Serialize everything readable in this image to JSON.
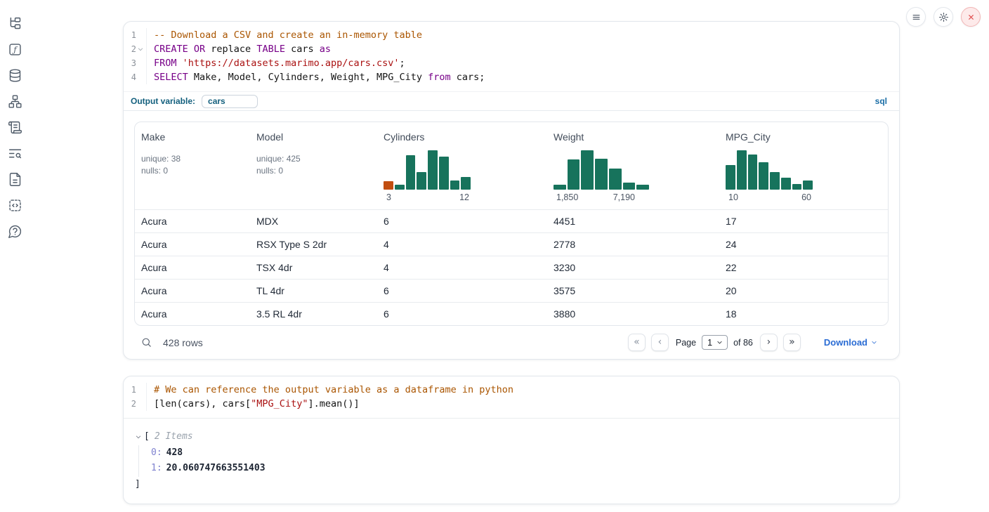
{
  "sidebar": {
    "icons": [
      "file-tree",
      "function-square",
      "database",
      "network-graph",
      "scroll-text",
      "text-search",
      "file-text",
      "code-snippets",
      "help-circle"
    ]
  },
  "top_controls": {
    "buttons": [
      "menu",
      "settings",
      "shutdown"
    ]
  },
  "sql_cell": {
    "language_badge": "sql",
    "output_variable_label": "Output variable:",
    "output_variable_value": "cars",
    "lines": [
      {
        "num": "1",
        "tokens": [
          {
            "t": "-- Download a CSV and create an in-memory table",
            "c": "comment"
          }
        ]
      },
      {
        "num": "2",
        "fold": true,
        "tokens": [
          {
            "t": "CREATE OR",
            "c": "keyword"
          },
          {
            "t": " replace ",
            "c": "plain"
          },
          {
            "t": "TABLE",
            "c": "keyword"
          },
          {
            "t": " cars ",
            "c": "plain"
          },
          {
            "t": "as",
            "c": "keyword"
          }
        ]
      },
      {
        "num": "3",
        "tokens": [
          {
            "t": "FROM",
            "c": "keyword"
          },
          {
            "t": " ",
            "c": "plain"
          },
          {
            "t": "'https://datasets.marimo.app/cars.csv'",
            "c": "string"
          },
          {
            "t": ";",
            "c": "plain"
          }
        ]
      },
      {
        "num": "4",
        "tokens": [
          {
            "t": "SELECT",
            "c": "keyword"
          },
          {
            "t": " Make, Model, Cylinders, Weight, MPG_City ",
            "c": "plain"
          },
          {
            "t": "from",
            "c": "keyword"
          },
          {
            "t": " cars;",
            "c": "plain"
          }
        ]
      }
    ]
  },
  "table": {
    "columns": [
      {
        "label": "Make",
        "stats": [
          "unique: 38",
          "nulls: 0"
        ]
      },
      {
        "label": "Model",
        "stats": [
          "unique: 425",
          "nulls: 0"
        ]
      },
      {
        "label": "Cylinders",
        "hist": 0
      },
      {
        "label": "Weight",
        "hist": 1
      },
      {
        "label": "MPG_City",
        "hist": 2
      }
    ],
    "rows": [
      [
        "Acura",
        "MDX",
        "6",
        "4451",
        "17"
      ],
      [
        "Acura",
        "RSX Type S 2dr",
        "4",
        "2778",
        "24"
      ],
      [
        "Acura",
        "TSX 4dr",
        "4",
        "3230",
        "22"
      ],
      [
        "Acura",
        "TL 4dr",
        "6",
        "3575",
        "20"
      ],
      [
        "Acura",
        "3.5 RL 4dr",
        "6",
        "3880",
        "18"
      ]
    ],
    "footer": {
      "rows_label": "428 rows",
      "first": "«",
      "prev": "‹",
      "next": "›",
      "last": "»",
      "page_label": "Page",
      "page_value": "1",
      "of_label": "of 86",
      "download_label": "Download"
    }
  },
  "chart_data": [
    {
      "type": "bar",
      "title": "Cylinders distribution histogram",
      "x_min_label": "3",
      "x_max_label": "12",
      "bar_heights_pct": [
        22,
        12,
        88,
        45,
        100,
        84,
        24,
        32
      ],
      "bar_colors": [
        "#c14e10",
        "#17735c",
        "#17735c",
        "#17735c",
        "#17735c",
        "#17735c",
        "#17735c",
        "#17735c"
      ],
      "default_color": "#17735c"
    },
    {
      "type": "bar",
      "title": "Weight distribution histogram",
      "x_min_label": "1,850",
      "x_max_label": "7,190",
      "bar_heights_pct": [
        12,
        76,
        100,
        78,
        53,
        17,
        12
      ],
      "default_color": "#17735c"
    },
    {
      "type": "bar",
      "title": "MPG_City distribution histogram",
      "x_min_label": "10",
      "x_max_label": "60",
      "bar_heights_pct": [
        62,
        100,
        90,
        70,
        44,
        30,
        14,
        23
      ],
      "default_color": "#17735c"
    }
  ],
  "python_cell": {
    "lines": [
      {
        "num": "1",
        "tokens": [
          {
            "t": "# We can reference the output variable as a dataframe in python",
            "c": "comment"
          }
        ]
      },
      {
        "num": "2",
        "tokens": [
          {
            "t": "[len(cars), cars[",
            "c": "plain"
          },
          {
            "t": "\"MPG_City\"",
            "c": "string"
          },
          {
            "t": "].mean()]",
            "c": "plain"
          }
        ]
      }
    ]
  },
  "result_tree": {
    "open_bracket": "[",
    "items_label": "2 Items",
    "entries": [
      {
        "key": "0:",
        "value": "428"
      },
      {
        "key": "1:",
        "value": "20.060747663551403"
      }
    ],
    "close_bracket": "]"
  }
}
